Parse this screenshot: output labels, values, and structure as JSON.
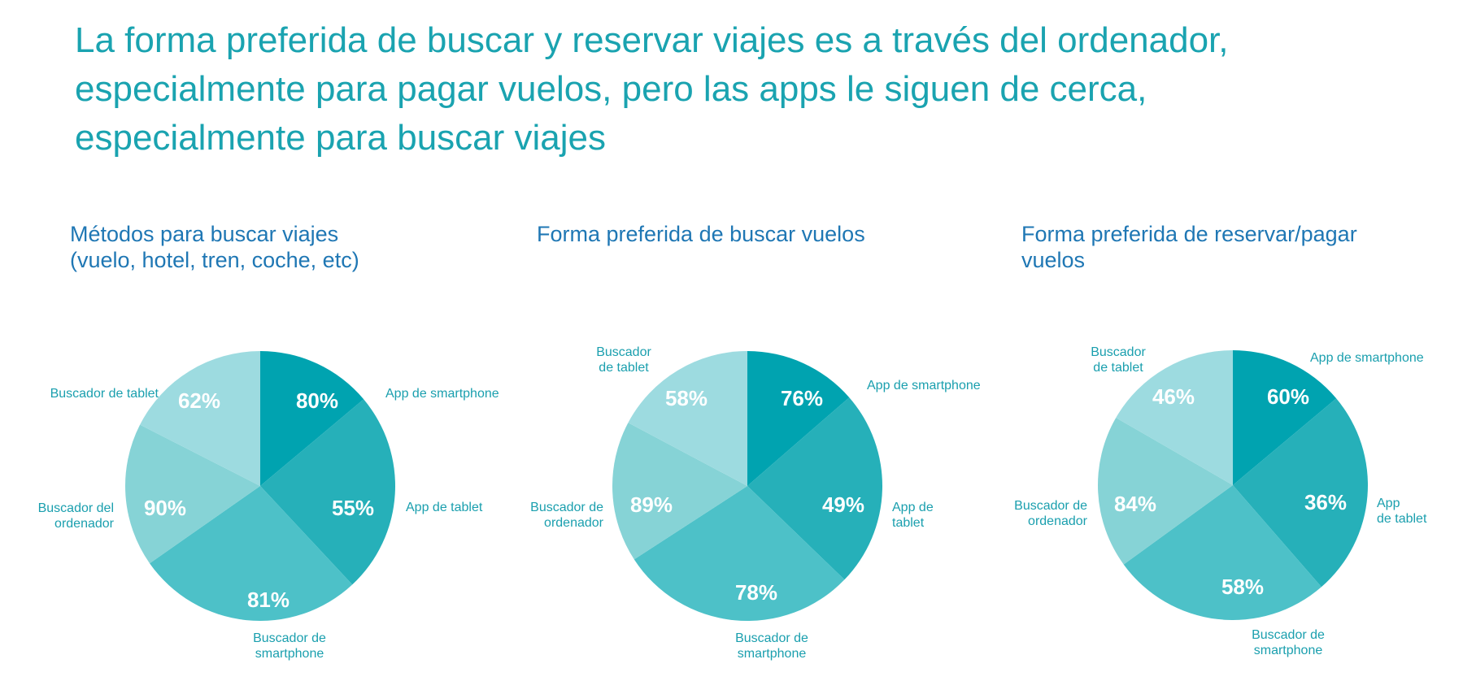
{
  "headline": [
    "La forma preferida de buscar y reservar viajes es a través del ordenador,",
    "especialmente para pagar vuelos, pero las apps le siguen de cerca,",
    "especialmente para buscar viajes"
  ],
  "colors": {
    "headline": "#1aa3b0",
    "chart_title": "#1f77b4",
    "label": "#1a9fae",
    "value_text": "#ffffff",
    "slices": [
      "#00a3b0",
      "#26b0b9",
      "#4dc1c8",
      "#86d3d6",
      "#9ddbe0"
    ]
  },
  "chart_data": [
    {
      "type": "pie",
      "title": [
        "Métodos para buscar viajes",
        "(vuelo, hotel, tren, coche, etc)"
      ],
      "slices": [
        {
          "label": [
            "App de smartphone"
          ],
          "value": "80%"
        },
        {
          "label": [
            "App de tablet"
          ],
          "value": "55%"
        },
        {
          "label": [
            "Buscador de",
            "smartphone"
          ],
          "value": "81%"
        },
        {
          "label": [
            "Buscador del",
            "ordenador"
          ],
          "value": "90%"
        },
        {
          "label": [
            "Buscador de tablet"
          ],
          "value": "62%"
        }
      ]
    },
    {
      "type": "pie",
      "title": [
        "Forma preferida de buscar vuelos"
      ],
      "slices": [
        {
          "label": [
            "App de smartphone"
          ],
          "value": "76%"
        },
        {
          "label": [
            "App de",
            "tablet"
          ],
          "value": "49%"
        },
        {
          "label": [
            "Buscador de",
            "smartphone"
          ],
          "value": "78%"
        },
        {
          "label": [
            "Buscador de",
            "ordenador"
          ],
          "value": "89%"
        },
        {
          "label": [
            "Buscador",
            "de tablet"
          ],
          "value": "58%"
        }
      ]
    },
    {
      "type": "pie",
      "title": [
        "Forma preferida de reservar/pagar",
        "vuelos"
      ],
      "slices": [
        {
          "label": [
            "App de smartphone"
          ],
          "value": "60%"
        },
        {
          "label": [
            "App",
            "de tablet"
          ],
          "value": "36%"
        },
        {
          "label": [
            "Buscador de",
            "smartphone"
          ],
          "value": "58%"
        },
        {
          "label": [
            "Buscador de",
            "ordenador"
          ],
          "value": "84%"
        },
        {
          "label": [
            "Buscador",
            "de tablet"
          ],
          "value": "46%"
        }
      ]
    }
  ]
}
